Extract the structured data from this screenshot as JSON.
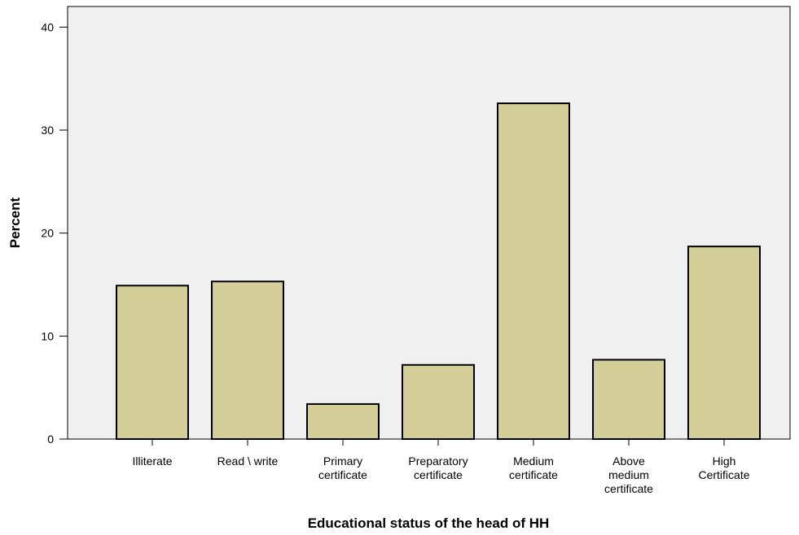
{
  "chart_data": {
    "type": "bar",
    "x_label": "Educational status of the head of HH",
    "y_label": "Percent",
    "categories": [
      "Illiterate",
      "Read \\ write",
      "Primary\ncertificate",
      "Preparatory\ncertificate",
      "Medium\ncertificate",
      "Above\nmedium\ncertificate",
      "High\nCertificate"
    ],
    "values": [
      14.9,
      15.3,
      3.4,
      7.2,
      32.6,
      7.7,
      18.7
    ],
    "color": "#d3ce97",
    "ylim": [
      0,
      42
    ],
    "yticks": [
      0,
      10,
      20,
      30,
      40
    ],
    "grid": false
  }
}
